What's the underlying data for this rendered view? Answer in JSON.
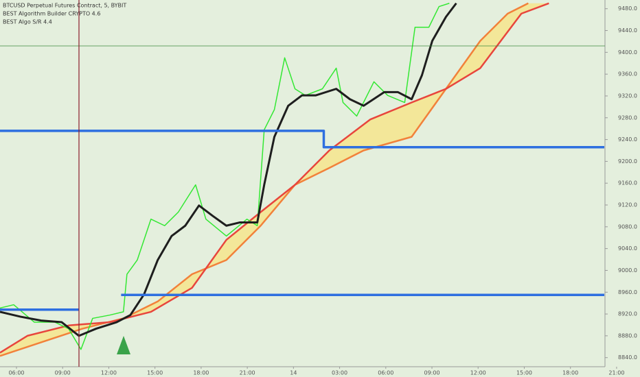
{
  "chart_data": {
    "type": "line",
    "title": "BTCUSD Perpetual Futures Contract, 5, BYBIT",
    "annotations": [
      "BEST Algorithm Builder CRYPTO 4.6",
      "BEST Algo S/R 4.4"
    ],
    "xlim": [
      4.93,
      44.2
    ],
    "ylim": [
      8817,
      9496
    ],
    "xticks": [
      {
        "value": 6,
        "label": "06:00"
      },
      {
        "value": 9,
        "label": "09:00"
      },
      {
        "value": 12,
        "label": "12:00"
      },
      {
        "value": 15,
        "label": "15:00"
      },
      {
        "value": 18,
        "label": "18:00"
      },
      {
        "value": 21,
        "label": "21:00"
      },
      {
        "value": 24,
        "label": "14"
      },
      {
        "value": 27,
        "label": "03:00"
      },
      {
        "value": 30,
        "label": "06:00"
      },
      {
        "value": 33,
        "label": "09:00"
      },
      {
        "value": 36,
        "label": "12:00"
      },
      {
        "value": 39,
        "label": "15:00"
      },
      {
        "value": 42,
        "label": "18:00"
      },
      {
        "value": 45,
        "label": "21:00"
      }
    ],
    "yticks": [
      {
        "value": 8840,
        "label": "8840.0"
      },
      {
        "value": 8880,
        "label": "8880.0"
      },
      {
        "value": 8920,
        "label": "8920.0"
      },
      {
        "value": 8960,
        "label": "8960.0"
      },
      {
        "value": 9000,
        "label": "9000.0"
      },
      {
        "value": 9040,
        "label": "9040.0"
      },
      {
        "value": 9080,
        "label": "9080.0"
      },
      {
        "value": 9120,
        "label": "9120.0"
      },
      {
        "value": 9160,
        "label": "9160.0"
      },
      {
        "value": 9200,
        "label": "9200.0"
      },
      {
        "value": 9240,
        "label": "9240.0"
      },
      {
        "value": 9280,
        "label": "9280.0"
      },
      {
        "value": 9320,
        "label": "9320.0"
      },
      {
        "value": 9360,
        "label": "9360.0"
      },
      {
        "value": 9400,
        "label": "9400.0"
      },
      {
        "value": 9440,
        "label": "9440.0"
      },
      {
        "value": 9480,
        "label": "9480.0"
      }
    ],
    "series": [
      {
        "color": "#f2813a",
        "width": 2.5,
        "band": "lower",
        "x": [
          4.93,
          7.6,
          10.28,
          12.95,
          15.18,
          17.41,
          19.64,
          21.87,
          24.1,
          26.33,
          28.56,
          31.68,
          33.91,
          36.14,
          37.92,
          39.26
        ],
        "values": [
          8843,
          8868,
          8893,
          8912,
          8943,
          8993,
          9019,
          9082,
          9157,
          9188,
          9220,
          9245,
          9333,
          9421,
          9471,
          9490
        ]
      },
      {
        "color": "#e8453c",
        "width": 2.5,
        "band": "upper",
        "x": [
          4.93,
          6.71,
          9.39,
          12.06,
          14.74,
          17.41,
          19.64,
          21.87,
          24.1,
          26.33,
          29.0,
          31.68,
          33.91,
          36.14,
          38.81,
          40.6
        ],
        "values": [
          8849,
          8880,
          8899,
          8905,
          8924,
          8968,
          9056,
          9107,
          9157,
          9220,
          9277,
          9308,
          9333,
          9371,
          9471,
          9490
        ]
      },
      {
        "color": "#33e833",
        "width": 1.5,
        "x": [
          4.93,
          5.82,
          7.16,
          8.5,
          9.39,
          10.19,
          10.95,
          12.06,
          12.95,
          13.18,
          13.85,
          14.74,
          15.63,
          16.52,
          17.64,
          18.31,
          19.64,
          20.98,
          21.65,
          22.1,
          22.76,
          23.43,
          24.1,
          24.77,
          25.88,
          26.78,
          27.22,
          28.11,
          29.23,
          30.12,
          31.23,
          31.9,
          32.8,
          33.46,
          34.13
        ],
        "values": [
          8931,
          8937,
          8905,
          8905,
          8893,
          8855,
          8912,
          8918,
          8924,
          8993,
          9019,
          9094,
          9082,
          9107,
          9157,
          9094,
          9063,
          9094,
          9082,
          9258,
          9295,
          9390,
          9333,
          9321,
          9333,
          9371,
          9308,
          9283,
          9346,
          9321,
          9308,
          9446,
          9446,
          9484,
          9490
        ]
      },
      {
        "color": "#1e1e1e",
        "width": 3,
        "x": [
          4.93,
          6.27,
          7.6,
          8.94,
          10.06,
          11.17,
          12.51,
          13.4,
          14.29,
          15.18,
          16.08,
          16.97,
          17.86,
          18.75,
          19.64,
          20.53,
          21.65,
          22.1,
          22.76,
          23.66,
          24.55,
          25.44,
          26.78,
          27.67,
          28.56,
          29.9,
          30.79,
          31.68,
          32.35,
          33.02,
          33.91,
          34.58
        ],
        "values": [
          8924,
          8915,
          8908,
          8905,
          8880,
          8893,
          8905,
          8918,
          8956,
          9019,
          9063,
          9082,
          9119,
          9100,
          9082,
          9088,
          9088,
          9157,
          9245,
          9302,
          9321,
          9321,
          9333,
          9314,
          9302,
          9327,
          9327,
          9314,
          9358,
          9421,
          9465,
          9490
        ]
      },
      {
        "color": "#2e6fe0",
        "width": 3.5,
        "x": [
          4.93,
          10.06,
          11,
          12.8,
          44.2
        ],
        "values": [
          8928,
          8928,
          null,
          8955,
          8955
        ]
      },
      {
        "color": "#2e6fe0",
        "width": 3.5,
        "x": [
          4.93,
          25.97,
          25.97,
          44.2
        ],
        "values": [
          9256,
          9256,
          9226,
          9226
        ]
      }
    ]
  }
}
